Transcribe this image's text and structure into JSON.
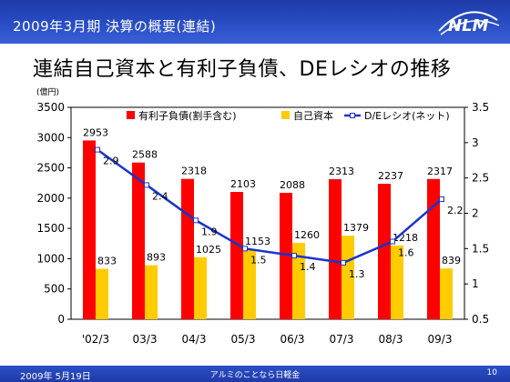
{
  "header": {
    "title": "2009年3月期 決算の概要(連結)",
    "logo_text": "NLM"
  },
  "main_title": "連結自己資本と有利子負債、DEレシオの推移",
  "footer": {
    "date": "2009年 5月19日",
    "company": "アルミのことなら日軽金",
    "page": "10"
  },
  "chart_data": {
    "type": "bar",
    "categories": [
      "'02/3",
      "03/3",
      "04/3",
      "05/3",
      "06/3",
      "07/3",
      "08/3",
      "09/3"
    ],
    "unit_label": "(億円)",
    "series": [
      {
        "name": "有利子負債(割手含む)",
        "type": "bar",
        "axis": "left",
        "color": "#ff0000",
        "values": [
          2953,
          2588,
          2318,
          2103,
          2088,
          2313,
          2237,
          2317
        ]
      },
      {
        "name": "自己資本",
        "type": "bar",
        "axis": "left",
        "color": "#ffcc00",
        "values": [
          833,
          893,
          1025,
          1153,
          1260,
          1379,
          1218,
          839
        ]
      },
      {
        "name": "D/Eレシオ(ネット)",
        "type": "line",
        "axis": "right",
        "color": "#1a33cc",
        "values": [
          2.9,
          2.4,
          1.9,
          1.5,
          1.4,
          1.3,
          1.6,
          2.2
        ]
      }
    ],
    "ylim": [
      0,
      3500
    ],
    "y_ticks": [
      "0",
      "500",
      "1000",
      "1500",
      "2000",
      "2500",
      "3000",
      "3500"
    ],
    "y2lim": [
      0.5,
      3.5
    ],
    "y2_ticks": [
      "0.5",
      "1",
      "1.5",
      "2",
      "2.5",
      "3",
      "3.5"
    ],
    "grid": false,
    "legend": "top"
  }
}
